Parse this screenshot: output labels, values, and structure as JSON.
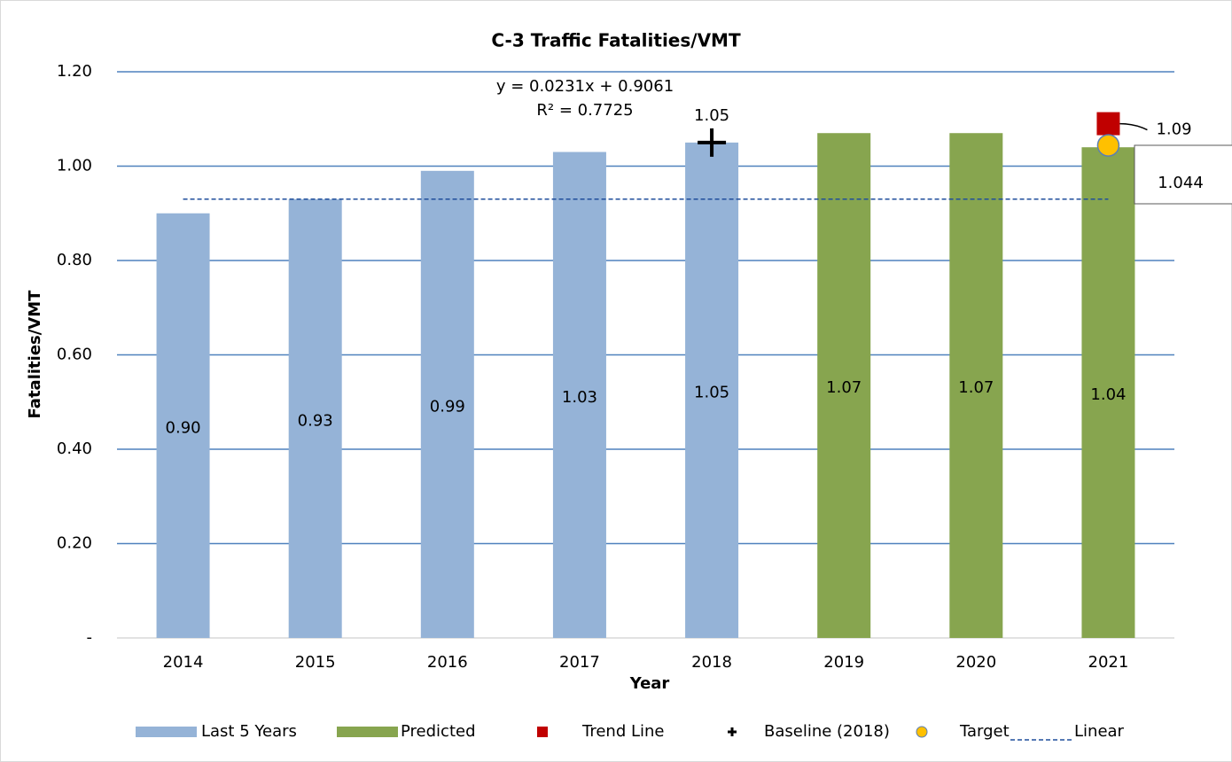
{
  "chart_data": {
    "type": "bar",
    "title": "C-3 Traffic Fatalities/VMT",
    "x_label": "Year",
    "y_label": "Fatalities/VMT",
    "annotations": [
      "y = 0.0231x + 0.9061",
      "R² = 0.7725"
    ],
    "categories": [
      "2014",
      "2015",
      "2016",
      "2017",
      "2018",
      "2019",
      "2020",
      "2021"
    ],
    "series": [
      {
        "name": "Last 5 Years",
        "type": "bar",
        "color": "#95b3d7",
        "values": [
          0.9,
          0.93,
          0.99,
          1.03,
          1.05,
          null,
          null,
          null
        ],
        "value_labels": [
          "0.90",
          "0.93",
          "0.99",
          "1.03",
          "1.05",
          null,
          null,
          null
        ]
      },
      {
        "name": "Predicted",
        "type": "bar",
        "color": "#87a54f",
        "values": [
          null,
          null,
          null,
          null,
          null,
          1.07,
          1.07,
          1.04
        ],
        "value_labels": [
          null,
          null,
          null,
          null,
          null,
          "1.07",
          "1.07",
          "1.04"
        ]
      },
      {
        "name": "Trend Line",
        "type": "marker",
        "marker": "square",
        "color": "#c00000",
        "values": [
          null,
          null,
          null,
          null,
          null,
          null,
          null,
          1.09
        ]
      },
      {
        "name": "Baseline (2018)",
        "type": "marker",
        "marker": "plus",
        "color": "#000000",
        "values": [
          null,
          null,
          null,
          null,
          1.05,
          null,
          null,
          null
        ]
      },
      {
        "name": "Target",
        "type": "marker",
        "marker": "circle",
        "color": "#ffc000",
        "values": [
          null,
          null,
          null,
          null,
          null,
          null,
          null,
          1.044
        ]
      },
      {
        "name": "Linear",
        "type": "line",
        "dash": true,
        "color": "#1f4e9b",
        "values": [
          0.93,
          0.93,
          0.93,
          0.93,
          0.93,
          0.93,
          0.93,
          0.93
        ]
      }
    ],
    "ylim": [
      0,
      1.2
    ],
    "yticks": [
      {
        "value": 0,
        "label": "-"
      },
      {
        "value": 0.2,
        "label": "0.20"
      },
      {
        "value": 0.4,
        "label": "0.40"
      },
      {
        "value": 0.6,
        "label": "0.60"
      },
      {
        "value": 0.8,
        "label": "0.80"
      },
      {
        "value": 1,
        "label": "1.00"
      },
      {
        "value": 1.2,
        "label": "1.20"
      }
    ],
    "grid": true,
    "legend": "bottom"
  }
}
